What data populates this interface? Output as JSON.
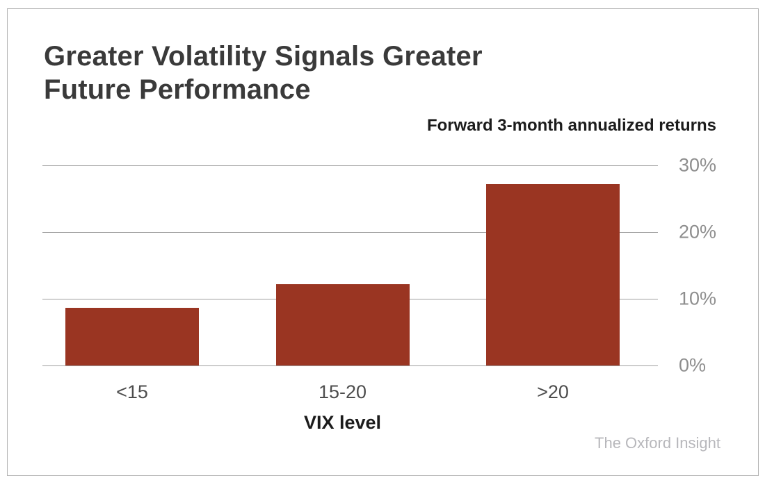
{
  "header": {
    "title_lines": [
      "Greater Volatility Signals Greater",
      "Future Performance"
    ],
    "subtitle": "Forward 3-month annualized returns"
  },
  "chart_data": {
    "type": "bar",
    "title": "Greater Volatility Signals Greater Future Performance",
    "subtitle": "Forward 3-month annualized returns",
    "categories": [
      "<15",
      "15-20",
      ">20"
    ],
    "values": [
      8.6,
      12.2,
      27.2
    ],
    "xlabel": "VIX level",
    "ylabel": "",
    "ylim": [
      0,
      30
    ],
    "yticks": [
      0,
      10,
      20,
      30
    ],
    "ytick_labels": [
      "0%",
      "10%",
      "20%",
      "30%"
    ],
    "grid": true,
    "legend": false,
    "bar_color": "#9a3522",
    "gridline_color": "#9e9e9e",
    "ytick_color": "#8e8e8e",
    "xtick_color": "#4d4d4d"
  },
  "footer": {
    "credit": "The Oxford Insight"
  }
}
